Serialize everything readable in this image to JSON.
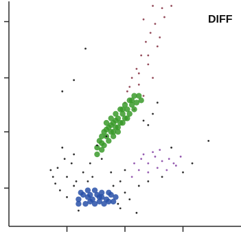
{
  "chart_data": {
    "type": "scatter",
    "title": "DIFF",
    "xlabel": "",
    "ylabel": "",
    "xlim": [
      0,
      100
    ],
    "ylim": [
      0,
      100
    ],
    "grid": false,
    "x_ticks": [
      25,
      50,
      75
    ],
    "y_ticks": [
      17,
      42,
      66,
      91
    ],
    "series": [
      {
        "color": "#8a3a4a",
        "points": [
          [
            62,
            98
          ],
          [
            66,
            97
          ],
          [
            70,
            98
          ],
          [
            58,
            92
          ],
          [
            63,
            90
          ],
          [
            61,
            86
          ],
          [
            59,
            82
          ],
          [
            64,
            80
          ],
          [
            57,
            76
          ],
          [
            55,
            70
          ],
          [
            60,
            72
          ],
          [
            53,
            66
          ],
          [
            56,
            63
          ],
          [
            51,
            60
          ],
          [
            58,
            58
          ],
          [
            50,
            55
          ],
          [
            54,
            52
          ],
          [
            62,
            66
          ],
          [
            65,
            84
          ],
          [
            67,
            93
          ],
          [
            52,
            62
          ],
          [
            56,
            68
          ],
          [
            60,
            76
          ]
        ]
      },
      {
        "color": "#3a9a2a",
        "points": [
          [
            42,
            46
          ],
          [
            44,
            48
          ],
          [
            46,
            50
          ],
          [
            48,
            52
          ],
          [
            50,
            54
          ],
          [
            52,
            56
          ],
          [
            54,
            58
          ],
          [
            56,
            58
          ],
          [
            45,
            46
          ],
          [
            47,
            48
          ],
          [
            49,
            50
          ],
          [
            51,
            52
          ],
          [
            53,
            54
          ],
          [
            43,
            44
          ],
          [
            41,
            42
          ],
          [
            40,
            40
          ],
          [
            39,
            38
          ],
          [
            42,
            40
          ],
          [
            44,
            42
          ],
          [
            46,
            44
          ],
          [
            48,
            46
          ],
          [
            50,
            48
          ],
          [
            52,
            50
          ],
          [
            54,
            52
          ],
          [
            45,
            42
          ],
          [
            47,
            44
          ],
          [
            49,
            46
          ],
          [
            43,
            38
          ],
          [
            41,
            36
          ],
          [
            40,
            34
          ],
          [
            38,
            32
          ],
          [
            45,
            40
          ],
          [
            47,
            42
          ],
          [
            51,
            48
          ],
          [
            55,
            55
          ],
          [
            57,
            56
          ],
          [
            53,
            56
          ],
          [
            49,
            52
          ],
          [
            46,
            47
          ],
          [
            44,
            45
          ],
          [
            42,
            43
          ],
          [
            40,
            37
          ],
          [
            38,
            35
          ]
        ]
      },
      {
        "color": "#8b4aa8",
        "points": [
          [
            54,
            28
          ],
          [
            57,
            30
          ],
          [
            60,
            28
          ],
          [
            63,
            31
          ],
          [
            66,
            29
          ],
          [
            69,
            30
          ],
          [
            72,
            27
          ],
          [
            56,
            25
          ],
          [
            60,
            24
          ],
          [
            64,
            26
          ],
          [
            68,
            25
          ],
          [
            71,
            28
          ],
          [
            74,
            31
          ],
          [
            58,
            32
          ],
          [
            62,
            33
          ],
          [
            65,
            34
          ],
          [
            53,
            22
          ]
        ]
      },
      {
        "color": "#2850a8",
        "points": [
          [
            30,
            12
          ],
          [
            32,
            14
          ],
          [
            34,
            13
          ],
          [
            36,
            12
          ],
          [
            38,
            14
          ],
          [
            40,
            13
          ],
          [
            42,
            12
          ],
          [
            44,
            14
          ],
          [
            33,
            10
          ],
          [
            35,
            11
          ],
          [
            37,
            10
          ],
          [
            39,
            11
          ],
          [
            41,
            10
          ],
          [
            43,
            11
          ],
          [
            31,
            15
          ],
          [
            34,
            16
          ],
          [
            37,
            16
          ],
          [
            40,
            15
          ],
          [
            43,
            15
          ],
          [
            46,
            13
          ],
          [
            30,
            10
          ],
          [
            35,
            14
          ],
          [
            39,
            13
          ],
          [
            45,
            11
          ]
        ]
      },
      {
        "color": "#1a1a1a",
        "points": [
          [
            22,
            16
          ],
          [
            19,
            22
          ],
          [
            21,
            26
          ],
          [
            24,
            30
          ],
          [
            27,
            28
          ],
          [
            20,
            19
          ],
          [
            25,
            22
          ],
          [
            29,
            20
          ],
          [
            32,
            24
          ],
          [
            36,
            22
          ],
          [
            40,
            30
          ],
          [
            38,
            36
          ],
          [
            42,
            40
          ],
          [
            45,
            18
          ],
          [
            48,
            20
          ],
          [
            50,
            15
          ],
          [
            44,
            24
          ],
          [
            35,
            28
          ],
          [
            23,
            35
          ],
          [
            28,
            32
          ],
          [
            55,
            6
          ],
          [
            48,
            8
          ],
          [
            30,
            7
          ],
          [
            60,
            45
          ],
          [
            62,
            50
          ],
          [
            64,
            55
          ],
          [
            58,
            47
          ],
          [
            28,
            65
          ],
          [
            33,
            79
          ],
          [
            23,
            60
          ],
          [
            75,
            24
          ],
          [
            79,
            28
          ],
          [
            86,
            38
          ],
          [
            25,
            13
          ],
          [
            47,
            10
          ],
          [
            52,
            12
          ],
          [
            56,
            18
          ],
          [
            60,
            20
          ],
          [
            66,
            22
          ],
          [
            70,
            35
          ],
          [
            28,
            18
          ],
          [
            34,
            20
          ],
          [
            50,
            25
          ],
          [
            18,
            25
          ]
        ]
      }
    ]
  }
}
